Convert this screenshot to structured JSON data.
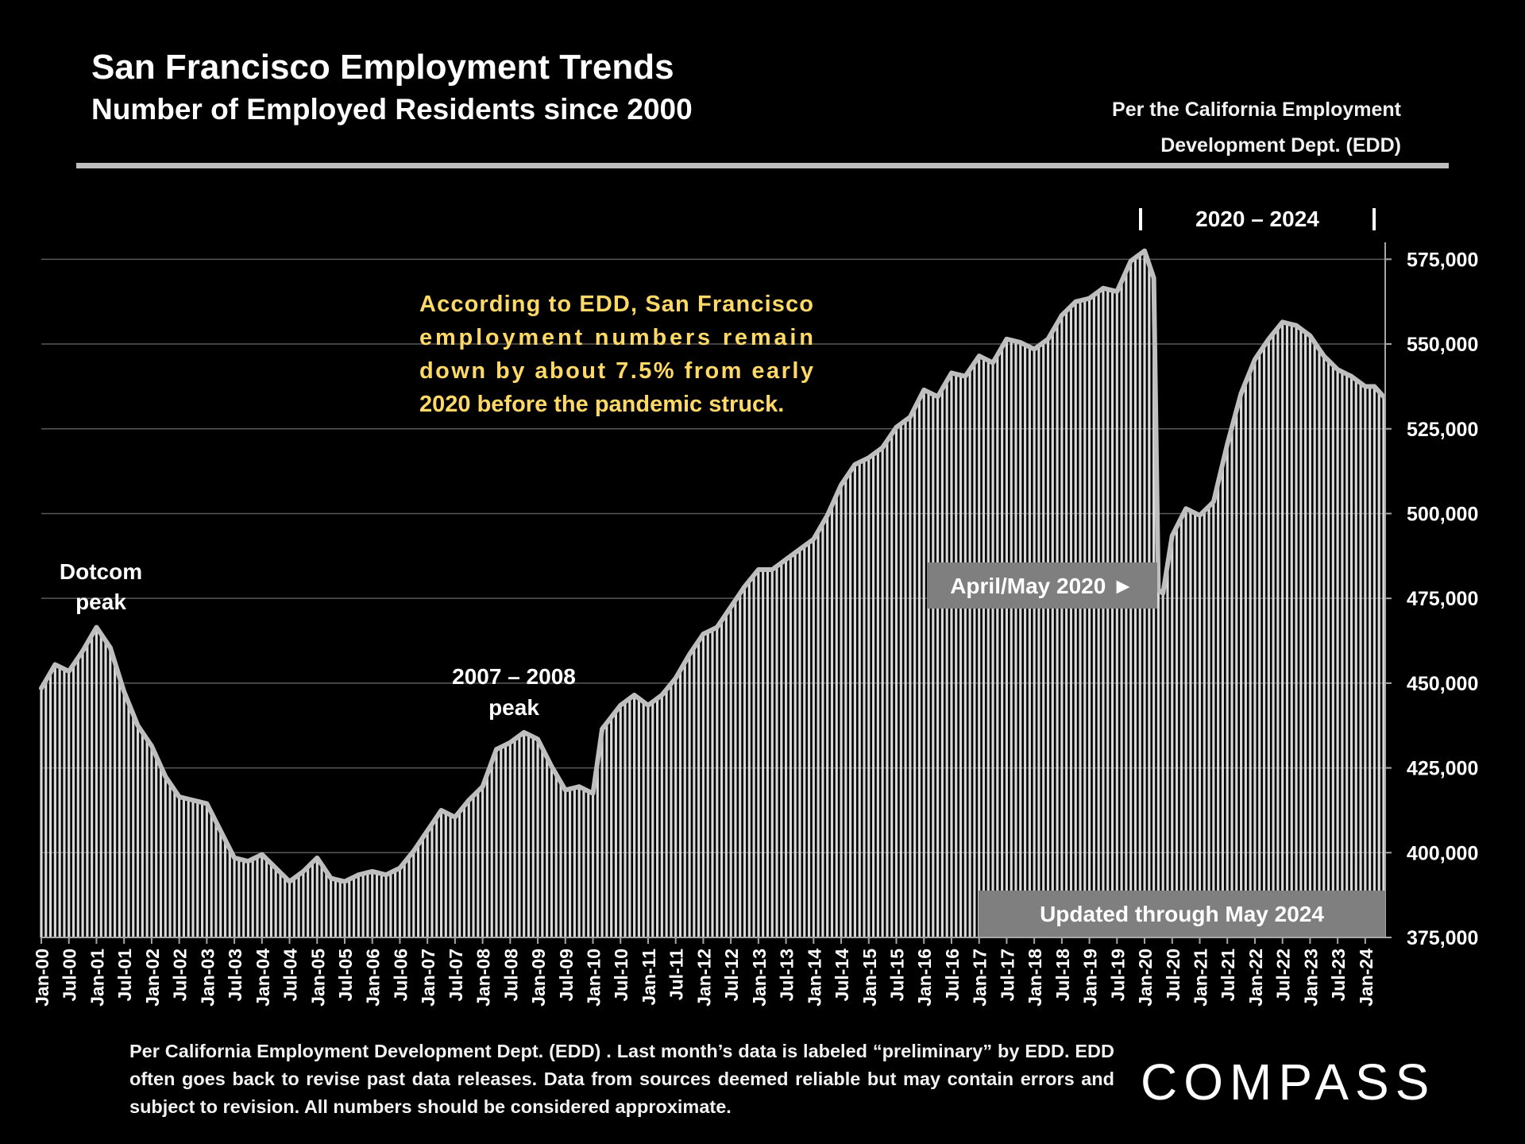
{
  "header": {
    "title": "San Francisco Employment Trends",
    "subtitle": "Number of Employed Residents since 2000",
    "source_line1": "Per the California Employment",
    "source_line2": "Development Dept. (EDD)"
  },
  "footnote": "Per California Employment Development Dept. (EDD) . Last month’s data is labeled “preliminary” by EDD. EDD often goes back to revise past data releases. Data from sources deemed reliable but may contain errors and subject to revision. All numbers should be considered approximate.",
  "logo": "COMPASS",
  "colors": {
    "background": "#000000",
    "bar": "#d9d9d9",
    "line": "#bfbfbf",
    "annotation_text": "#ffd966",
    "label_box": "#7f7f7f"
  },
  "chart_data": {
    "type": "bar",
    "title": "San Francisco Employment Trends",
    "x_start": "Jan-00",
    "x_end": "May-24",
    "frequency": "monthly",
    "ylim": [
      375000,
      580000
    ],
    "y_ticks": [
      "375,000",
      "400,000",
      "425,000",
      "450,000",
      "475,000",
      "500,000",
      "525,000",
      "550,000",
      "575,000"
    ],
    "y_tick_values": [
      375000,
      400000,
      425000,
      450000,
      475000,
      500000,
      525000,
      550000,
      575000
    ],
    "x_tick_labels": [
      "Jan-00",
      "Jul-00",
      "Jan-01",
      "Jul-01",
      "Jan-02",
      "Jul-02",
      "Jan-03",
      "Jul-03",
      "Jan-04",
      "Jul-04",
      "Jan-05",
      "Jul-05",
      "Jan-06",
      "Jul-06",
      "Jan-07",
      "Jul-07",
      "Jan-08",
      "Jul-08",
      "Jan-09",
      "Jul-09",
      "Jan-10",
      "Jul-10",
      "Jan-11",
      "Jul-11",
      "Jan-12",
      "Jul-12",
      "Jan-13",
      "Jul-13",
      "Jan-14",
      "Jul-14",
      "Jan-15",
      "Jul-15",
      "Jan-16",
      "Jul-16",
      "Jan-17",
      "Jul-17",
      "Jan-18",
      "Jul-18",
      "Jan-19",
      "Jul-19",
      "Jan-20",
      "Jul-20",
      "Jan-21",
      "Jul-21",
      "Jan-22",
      "Jul-22",
      "Jan-23",
      "Jul-23",
      "Jan-24"
    ],
    "series_keypoints": [
      [
        "Jan-00",
        448000
      ],
      [
        "Apr-00",
        455000
      ],
      [
        "Jul-00",
        453000
      ],
      [
        "Oct-00",
        459000
      ],
      [
        "Jan-01",
        466000
      ],
      [
        "Apr-01",
        460000
      ],
      [
        "Jul-01",
        447000
      ],
      [
        "Oct-01",
        437000
      ],
      [
        "Jan-02",
        431000
      ],
      [
        "Apr-02",
        422000
      ],
      [
        "Jul-02",
        416000
      ],
      [
        "Oct-02",
        415000
      ],
      [
        "Jan-03",
        414000
      ],
      [
        "Apr-03",
        406000
      ],
      [
        "Jul-03",
        398000
      ],
      [
        "Oct-03",
        397000
      ],
      [
        "Jan-04",
        399000
      ],
      [
        "Apr-04",
        395000
      ],
      [
        "Jul-04",
        391000
      ],
      [
        "Oct-04",
        394000
      ],
      [
        "Jan-05",
        398000
      ],
      [
        "Apr-05",
        392000
      ],
      [
        "Jul-05",
        391000
      ],
      [
        "Oct-05",
        393000
      ],
      [
        "Jan-06",
        394000
      ],
      [
        "Apr-06",
        393000
      ],
      [
        "Jul-06",
        395000
      ],
      [
        "Oct-06",
        400000
      ],
      [
        "Jan-07",
        406000
      ],
      [
        "Apr-07",
        412000
      ],
      [
        "Jul-07",
        410000
      ],
      [
        "Oct-07",
        415000
      ],
      [
        "Jan-08",
        419000
      ],
      [
        "Apr-08",
        430000
      ],
      [
        "Jul-08",
        432000
      ],
      [
        "Oct-08",
        435000
      ],
      [
        "Jan-09",
        433000
      ],
      [
        "Apr-09",
        425000
      ],
      [
        "Jul-09",
        418000
      ],
      [
        "Oct-09",
        419000
      ],
      [
        "Jan-10",
        417000
      ],
      [
        "Mar-10",
        436000
      ],
      [
        "Jul-10",
        443000
      ],
      [
        "Oct-10",
        446000
      ],
      [
        "Jan-11",
        443000
      ],
      [
        "Apr-11",
        446000
      ],
      [
        "Jul-11",
        451000
      ],
      [
        "Oct-11",
        458000
      ],
      [
        "Jan-12",
        464000
      ],
      [
        "Apr-12",
        466000
      ],
      [
        "Jul-12",
        472000
      ],
      [
        "Oct-12",
        478000
      ],
      [
        "Jan-13",
        483000
      ],
      [
        "Apr-13",
        483000
      ],
      [
        "Jul-13",
        486000
      ],
      [
        "Oct-13",
        489000
      ],
      [
        "Jan-14",
        492000
      ],
      [
        "Apr-14",
        499000
      ],
      [
        "Jul-14",
        508000
      ],
      [
        "Oct-14",
        514000
      ],
      [
        "Jan-15",
        516000
      ],
      [
        "Apr-15",
        519000
      ],
      [
        "Jul-15",
        525000
      ],
      [
        "Oct-15",
        528000
      ],
      [
        "Jan-16",
        536000
      ],
      [
        "Apr-16",
        534000
      ],
      [
        "Jul-16",
        541000
      ],
      [
        "Oct-16",
        540000
      ],
      [
        "Jan-17",
        546000
      ],
      [
        "Apr-17",
        544000
      ],
      [
        "Jul-17",
        551000
      ],
      [
        "Oct-17",
        550000
      ],
      [
        "Jan-18",
        548000
      ],
      [
        "Apr-18",
        551000
      ],
      [
        "Jul-18",
        558000
      ],
      [
        "Oct-18",
        562000
      ],
      [
        "Jan-19",
        563000
      ],
      [
        "Apr-19",
        566000
      ],
      [
        "Jul-19",
        565000
      ],
      [
        "Oct-19",
        574000
      ],
      [
        "Jan-20",
        577000
      ],
      [
        "Mar-20",
        569000
      ],
      [
        "Apr-20",
        477000
      ],
      [
        "May-20",
        476000
      ],
      [
        "Jul-20",
        493000
      ],
      [
        "Oct-20",
        501000
      ],
      [
        "Jan-21",
        499000
      ],
      [
        "Apr-21",
        503000
      ],
      [
        "Jul-21",
        520000
      ],
      [
        "Oct-21",
        535000
      ],
      [
        "Jan-22",
        545000
      ],
      [
        "Apr-22",
        551000
      ],
      [
        "Jul-22",
        556000
      ],
      [
        "Oct-22",
        555000
      ],
      [
        "Jan-23",
        552000
      ],
      [
        "Apr-23",
        546000
      ],
      [
        "Jul-23",
        542000
      ],
      [
        "Oct-23",
        540000
      ],
      [
        "Jan-24",
        537000
      ],
      [
        "Mar-24",
        537000
      ],
      [
        "May-24",
        534000
      ]
    ],
    "annotations": {
      "dotcom_line1": "Dotcom",
      "dotcom_line2": "peak",
      "peak2008_line1": "2007 – 2008",
      "peak2008_line2": "peak",
      "period_label": "2020 – 2024",
      "commentary": [
        "According to EDD, San Francisco",
        "employment numbers remain",
        "down by about 7.5% from early",
        "2020 before the pandemic struck."
      ],
      "april_may_label": "April/May 2020 ►",
      "updated_label": "Updated through May 2024"
    }
  }
}
